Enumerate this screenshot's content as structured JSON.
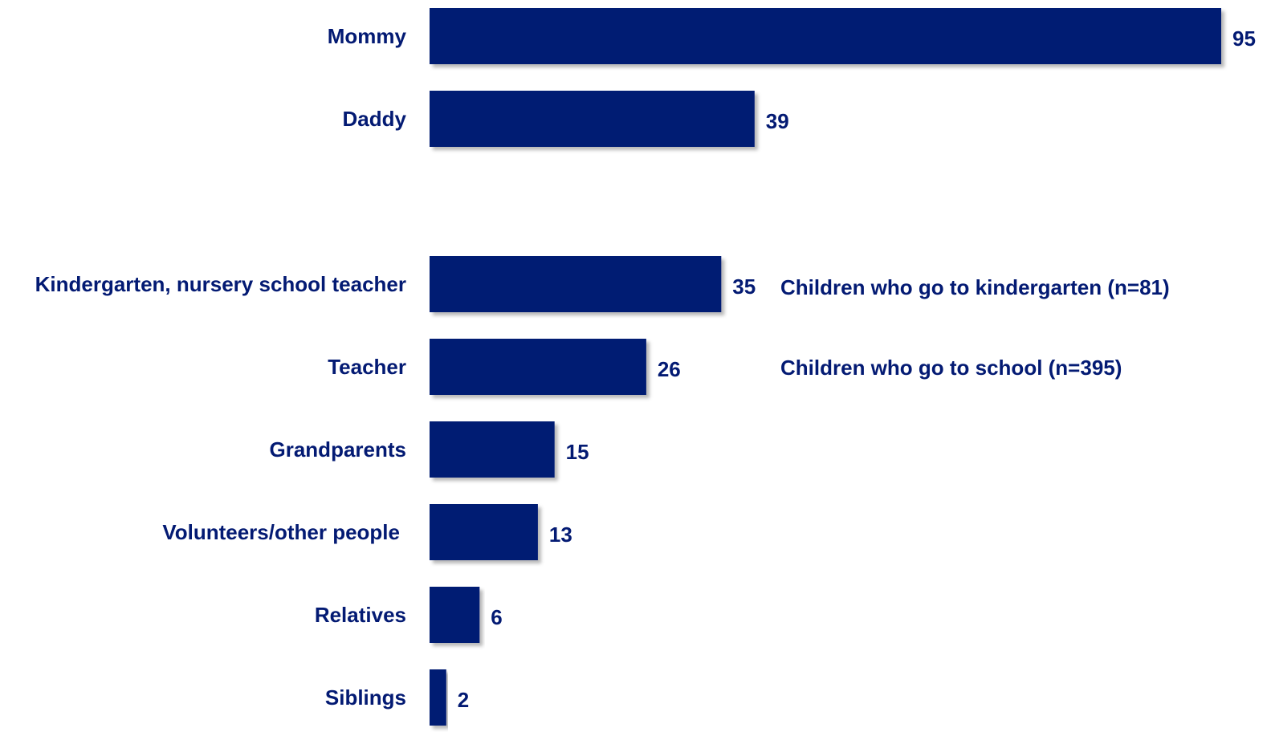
{
  "chart_data": {
    "type": "bar",
    "orientation": "horizontal",
    "categories": [
      "Mommy",
      "Daddy",
      "Kindergarten, nursery school  teacher",
      "Teacher",
      "Grandparents",
      "Volunteers/other people",
      "Relatives",
      "Siblings"
    ],
    "values": [
      95,
      39,
      35,
      26,
      15,
      13,
      6,
      2
    ],
    "value_labels": [
      "95",
      "39",
      "35",
      "26",
      "15",
      "13",
      "6",
      "2"
    ],
    "xlim": [
      0,
      95
    ],
    "title": "",
    "xlabel": "",
    "ylabel": "",
    "grid": false,
    "legend": "none",
    "annotations": [
      "Children who go to kindergarten (n=81)",
      "Children who go to school (n=395)"
    ]
  },
  "colors": {
    "bar": "#031a73",
    "text": "#031a73"
  }
}
